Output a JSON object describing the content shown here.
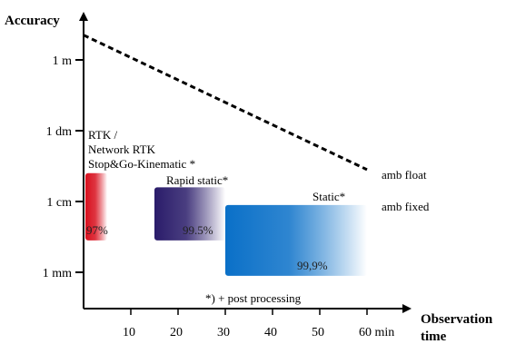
{
  "chart_data": {
    "type": "diagram",
    "y_axis_title": "Accuracy",
    "x_axis_title": [
      "Observation",
      "time"
    ],
    "y_ticks": [
      "1 m",
      "1 dm",
      "1 cm",
      "1 mm"
    ],
    "x_ticks": [
      "10",
      "20",
      "30",
      "40",
      "50",
      "60 min"
    ],
    "x_tick_values": [
      10,
      20,
      30,
      40,
      50,
      60
    ],
    "y_tick_levels": [
      3,
      2,
      1,
      0
    ],
    "float_line": {
      "label": "amb float",
      "start": {
        "minutes": 0,
        "level": 3.35
      },
      "end": {
        "minutes": 60,
        "level": 1.45
      }
    },
    "fixed_label": "amb fixed",
    "methods": [
      {
        "label_lines": [
          "RTK /",
          "Network RTK",
          "Stop&Go-Kinematic *"
        ],
        "percent": "97%",
        "minutes": [
          0,
          5
        ],
        "accuracy_levels": [
          0.45,
          1.4
        ],
        "color_solid": "#d8101e",
        "color_fade": "#ffffff"
      },
      {
        "label_lines": [
          "Rapid static*"
        ],
        "percent": "99.5%",
        "minutes": [
          15,
          30
        ],
        "accuracy_levels": [
          0.45,
          1.2
        ],
        "color_solid": "#2a1c6a",
        "color_fade": "#ffffff"
      },
      {
        "label_lines": [
          "Static*"
        ],
        "percent": "99,9%",
        "minutes": [
          30,
          60
        ],
        "accuracy_levels": [
          -0.05,
          0.95
        ],
        "color_solid": "#0a70c8",
        "color_fade": "#ffffff"
      }
    ],
    "footnote": "*) + post processing"
  }
}
